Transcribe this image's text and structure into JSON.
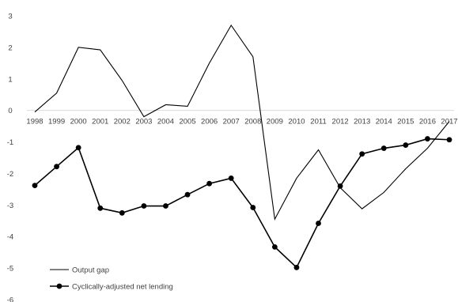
{
  "chart_data": {
    "type": "line",
    "title": "",
    "xlabel": "",
    "ylabel": "",
    "x": [
      "1998",
      "1999",
      "2000",
      "2001",
      "2002",
      "2003",
      "2004",
      "2005",
      "2006",
      "2007",
      "2008",
      "2009",
      "2010",
      "2011",
      "2012",
      "2013",
      "2014",
      "2015",
      "2016",
      "2017"
    ],
    "ylim": [
      -6,
      3
    ],
    "yticks": [
      3,
      2,
      1,
      0,
      -1,
      -2,
      -3,
      -4,
      -5,
      -6
    ],
    "grid": false,
    "legend_position": "bottom-left",
    "series": [
      {
        "name": "Output gap",
        "marker": "none",
        "color": "#000000",
        "values": [
          -0.05,
          0.55,
          2.0,
          1.92,
          0.95,
          -0.2,
          0.18,
          0.13,
          1.5,
          2.7,
          1.7,
          -3.45,
          -2.15,
          -1.25,
          -2.45,
          -3.12,
          -2.6,
          -1.85,
          -1.2,
          -0.35
        ]
      },
      {
        "name": "Cyclically-adjusted net lending",
        "marker": "circle",
        "color": "#000000",
        "values": [
          -2.38,
          -1.78,
          -1.18,
          -3.1,
          -3.25,
          -3.03,
          -3.03,
          -2.67,
          -2.32,
          -2.15,
          -3.08,
          -4.33,
          -4.98,
          -3.58,
          -2.4,
          -1.38,
          -1.2,
          -1.1,
          -0.9,
          -0.93
        ]
      }
    ]
  }
}
